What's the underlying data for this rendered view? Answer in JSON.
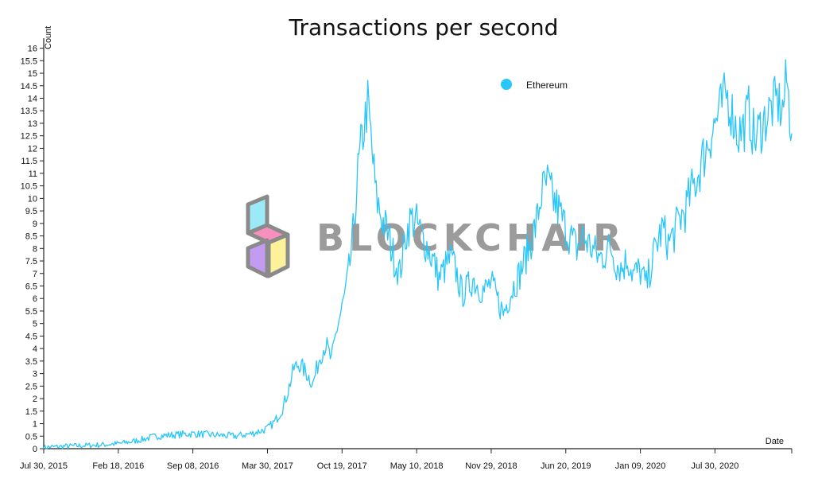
{
  "chart_data": {
    "type": "line",
    "title": "Transactions per second",
    "ylabel": "Count",
    "xlabel": "Date",
    "ylim": [
      0,
      16.4
    ],
    "y_ticks": [
      0,
      0.5,
      1,
      1.5,
      2,
      2.5,
      3,
      3.5,
      4,
      4.5,
      5,
      5.5,
      6,
      6.5,
      7,
      7.5,
      8,
      8.5,
      9,
      9.5,
      10,
      10.5,
      11,
      11.5,
      12,
      12.5,
      13,
      13.5,
      14,
      14.5,
      15,
      15.5,
      16
    ],
    "x_range": [
      "2015-07-30",
      "2021-02-24"
    ],
    "x_ticks": [
      {
        "date": "2015-07-30",
        "label": "Jul 30, 2015"
      },
      {
        "date": "2016-02-18",
        "label": "Feb 18, 2016"
      },
      {
        "date": "2016-09-08",
        "label": "Sep 08, 2016"
      },
      {
        "date": "2017-03-30",
        "label": "Mar 30, 2017"
      },
      {
        "date": "2017-10-19",
        "label": "Oct 19, 2017"
      },
      {
        "date": "2018-05-10",
        "label": "May 10, 2018"
      },
      {
        "date": "2018-11-29",
        "label": "Nov 29, 2018"
      },
      {
        "date": "2019-06-20",
        "label": "Jun 20, 2019"
      },
      {
        "date": "2020-01-09",
        "label": "Jan 09, 2020"
      },
      {
        "date": "2020-07-30",
        "label": "Jul 30, 2020"
      }
    ],
    "legend_position": "top-right",
    "grid": false,
    "series": [
      {
        "name": "Ethereum",
        "color": "#29c6fa",
        "x": [
          "2015-07-30",
          "2015-10-01",
          "2016-01-01",
          "2016-02-18",
          "2016-04-01",
          "2016-06-01",
          "2016-07-15",
          "2016-09-08",
          "2016-11-01",
          "2017-01-01",
          "2017-02-15",
          "2017-03-30",
          "2017-04-20",
          "2017-05-10",
          "2017-05-25",
          "2017-06-10",
          "2017-06-25",
          "2017-07-15",
          "2017-08-01",
          "2017-08-20",
          "2017-09-05",
          "2017-09-20",
          "2017-10-05",
          "2017-10-19",
          "2017-11-01",
          "2017-11-15",
          "2017-12-01",
          "2017-12-15",
          "2017-12-28",
          "2018-01-08",
          "2018-01-20",
          "2018-02-05",
          "2018-02-20",
          "2018-03-10",
          "2018-03-25",
          "2018-04-10",
          "2018-04-25",
          "2018-05-10",
          "2018-05-25",
          "2018-06-10",
          "2018-06-25",
          "2018-07-10",
          "2018-07-25",
          "2018-08-10",
          "2018-08-25",
          "2018-09-10",
          "2018-09-25",
          "2018-10-10",
          "2018-10-25",
          "2018-11-10",
          "2018-11-29",
          "2018-12-15",
          "2019-01-01",
          "2019-01-15",
          "2019-02-01",
          "2019-02-15",
          "2019-03-01",
          "2019-03-15",
          "2019-04-01",
          "2019-04-15",
          "2019-05-01",
          "2019-05-15",
          "2019-06-01",
          "2019-06-20",
          "2019-07-05",
          "2019-07-20",
          "2019-08-05",
          "2019-08-20",
          "2019-09-05",
          "2019-09-20",
          "2019-10-05",
          "2019-10-20",
          "2019-11-05",
          "2019-11-20",
          "2019-12-05",
          "2019-12-20",
          "2020-01-09",
          "2020-01-25",
          "2020-02-10",
          "2020-02-25",
          "2020-03-10",
          "2020-03-25",
          "2020-04-10",
          "2020-04-25",
          "2020-05-10",
          "2020-05-25",
          "2020-06-10",
          "2020-06-25",
          "2020-07-10",
          "2020-07-30",
          "2020-08-15",
          "2020-08-30",
          "2020-09-15",
          "2020-09-30",
          "2020-10-15",
          "2020-10-30",
          "2020-11-15",
          "2020-11-30",
          "2020-12-15",
          "2020-12-30",
          "2021-01-15",
          "2021-01-30",
          "2021-02-10",
          "2021-02-24"
        ],
        "values": [
          0.05,
          0.1,
          0.15,
          0.2,
          0.3,
          0.5,
          0.55,
          0.6,
          0.55,
          0.5,
          0.6,
          0.8,
          1.1,
          1.6,
          2.3,
          3.2,
          3.4,
          3.0,
          2.6,
          3.7,
          4.2,
          3.5,
          4.8,
          5.6,
          6.5,
          8.0,
          11.0,
          12.6,
          13.8,
          12.0,
          10.0,
          9.2,
          8.6,
          7.6,
          7.0,
          8.5,
          9.2,
          9.0,
          8.5,
          8.0,
          7.5,
          6.8,
          7.2,
          7.6,
          7.1,
          6.2,
          6.4,
          6.8,
          6.5,
          6.3,
          6.6,
          6.0,
          5.4,
          6.0,
          6.6,
          7.0,
          7.6,
          8.2,
          9.0,
          10.2,
          10.6,
          10.0,
          9.5,
          8.8,
          8.4,
          8.0,
          8.5,
          8.2,
          7.9,
          7.6,
          7.8,
          8.1,
          7.4,
          7.2,
          7.6,
          7.0,
          7.1,
          6.5,
          7.5,
          8.3,
          8.8,
          8.2,
          8.6,
          9.2,
          9.5,
          10.2,
          10.8,
          11.5,
          12.2,
          13.0,
          13.6,
          14.2,
          13.4,
          12.6,
          12.8,
          13.5,
          12.3,
          12.8,
          13.2,
          13.6,
          13.9,
          13.5,
          14.8,
          12.6
        ]
      }
    ]
  },
  "watermark": {
    "text": "BLOCKCHAIR",
    "colors": {
      "cyan": "#9ceaf7",
      "pink": "#f78fbf",
      "purple": "#c39cf2",
      "yellow": "#fdf19a",
      "outline": "#8a8a8a"
    }
  }
}
